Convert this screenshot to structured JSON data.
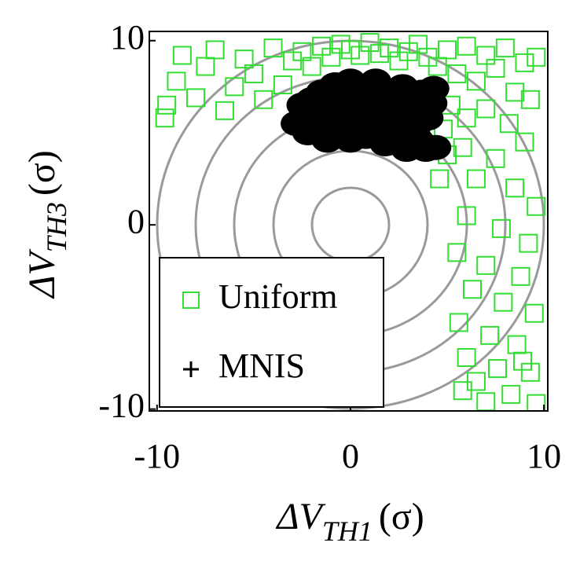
{
  "chart_data": {
    "type": "scatter",
    "x_label": {
      "main": "ΔV",
      "sub": "TH1",
      "unit": "(σ)"
    },
    "y_label": {
      "main": "ΔV",
      "sub": "TH3",
      "unit": "(σ)"
    },
    "xlim": [
      -10.4,
      10.2
    ],
    "ylim": [
      -10.1,
      10.5
    ],
    "xticks": [
      -10,
      0,
      10
    ],
    "yticks": [
      -10,
      0,
      10
    ],
    "grid": false,
    "legend": "lower left",
    "series": [
      {
        "name": "Uniform",
        "color": "#33dd33",
        "marker": "square",
        "x": [
          -9.5,
          -9,
          -8.7,
          -9.6,
          -8,
          -7.5,
          -7,
          -6.5,
          -6,
          -5.5,
          -5,
          -4.5,
          -4,
          -3.5,
          -3,
          -2.5,
          -2,
          -1.5,
          -1,
          -0.5,
          0,
          0.5,
          1,
          1.5,
          2,
          2.5,
          3,
          3.5,
          4,
          4.5,
          5,
          5.5,
          6,
          6.5,
          7,
          7.5,
          8,
          8.5,
          9,
          9.6,
          5.2,
          6,
          7,
          8.2,
          9.3,
          5.8,
          7.5,
          9,
          6.5,
          8.5,
          9.6,
          6,
          7.8,
          9.2,
          5.5,
          7,
          8.8,
          6.3,
          7.9,
          9.5,
          5.6,
          7.2,
          8.6,
          6,
          7.6,
          9.3,
          5.8,
          7,
          8.3,
          9.6,
          6.5,
          8.9,
          4.8,
          5,
          4.6
        ],
        "y": [
          6.5,
          7.8,
          9.2,
          5.8,
          6.9,
          8.6,
          9.5,
          6.2,
          7.5,
          9,
          8.2,
          6.8,
          9.6,
          7.6,
          8.9,
          9.4,
          8.6,
          9.7,
          9.1,
          9.8,
          9.5,
          9.2,
          9.9,
          9.3,
          9.6,
          8.9,
          9.4,
          9.8,
          9.1,
          8.6,
          9.5,
          8.2,
          9.7,
          7.8,
          9.2,
          8.5,
          9.6,
          7.2,
          8.8,
          9.1,
          6.5,
          5.8,
          6.3,
          5.5,
          6.8,
          4.2,
          3.6,
          4.5,
          2.5,
          2,
          1,
          0.5,
          -0.2,
          -1,
          -1.5,
          -2.2,
          -2.8,
          -3.5,
          -4.2,
          -4.8,
          -5.3,
          -6,
          -6.5,
          -7.2,
          -7.8,
          -8,
          -9,
          -9.6,
          -9.2,
          -9.7,
          -8.5,
          -7.4,
          5.2,
          3.8,
          2.5
        ]
      },
      {
        "name": "MNIS",
        "color": "#000000",
        "marker": "plus",
        "x": [
          -2.8,
          -2.5,
          -2.2,
          -2,
          -1.7,
          -1.5,
          -1.2,
          -1,
          -0.8,
          -0.5,
          -0.3,
          0,
          0,
          0.3,
          0.5,
          0.8,
          1,
          1.3,
          1.5,
          1.8,
          2,
          2.2,
          2.5,
          2.7,
          3,
          3.2,
          3.5,
          3.7,
          4,
          4.2,
          4.4,
          4.3,
          -1.8,
          0.6,
          2.4,
          1.2,
          -0.2,
          3.4,
          3.9,
          2.9
        ],
        "y": [
          5.5,
          6.5,
          5,
          6.8,
          5.6,
          7.2,
          4.6,
          6.2,
          7.6,
          5.3,
          6.9,
          4.6,
          7.8,
          6,
          7.3,
          4.8,
          6.6,
          7.8,
          5.5,
          4.4,
          7,
          6.1,
          4.8,
          7.5,
          5.6,
          6.8,
          4.6,
          7.2,
          5.8,
          6.6,
          4.2,
          7.4,
          6,
          5.4,
          5.2,
          5,
          5.9,
          5.4,
          4.1,
          4.1
        ]
      }
    ]
  }
}
